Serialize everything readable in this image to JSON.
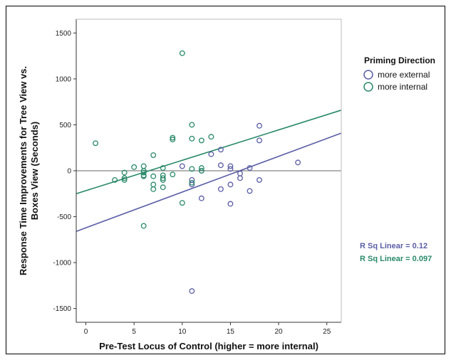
{
  "chart_data": {
    "type": "scatter",
    "xlabel": "Pre-Test Locus of Control (higher = more internal)",
    "ylabel_lines": [
      "Response Time Improvements for Tree View vs.",
      "Boxes View (Seconds)"
    ],
    "xlim": [
      -1,
      26.5
    ],
    "ylim": [
      -1650,
      1650
    ],
    "x_ticks": [
      0,
      5,
      10,
      15,
      20,
      25
    ],
    "y_ticks": [
      -1500,
      -1000,
      -500,
      0,
      500,
      1000,
      1500
    ],
    "reference_line_y": 0,
    "legend": {
      "title": "Priming Direction",
      "placement": "right"
    },
    "series": [
      {
        "name": "more external",
        "color": "#5b5ea6",
        "points": [
          [
            10,
            50
          ],
          [
            11,
            -100
          ],
          [
            11,
            -150
          ],
          [
            11,
            -1310
          ],
          [
            12,
            0
          ],
          [
            12,
            -300
          ],
          [
            13,
            180
          ],
          [
            14,
            60
          ],
          [
            14,
            -200
          ],
          [
            14,
            230
          ],
          [
            15,
            50
          ],
          [
            15,
            20
          ],
          [
            15,
            -150
          ],
          [
            15,
            -360
          ],
          [
            16,
            -80
          ],
          [
            16,
            -30
          ],
          [
            17,
            30
          ],
          [
            17,
            -220
          ],
          [
            18,
            490
          ],
          [
            18,
            330
          ],
          [
            18,
            -100
          ],
          [
            22,
            90
          ]
        ],
        "fit": {
          "x": [
            -1,
            26.5
          ],
          "y": [
            -660,
            410
          ]
        },
        "r_sq_label": "R Sq Linear = 0.12"
      },
      {
        "name": "more internal",
        "color": "#2a8a6a",
        "points": [
          [
            1,
            300
          ],
          [
            3,
            -100
          ],
          [
            4,
            -80
          ],
          [
            4,
            -100
          ],
          [
            4,
            -20
          ],
          [
            5,
            40
          ],
          [
            6,
            50
          ],
          [
            6,
            0
          ],
          [
            6,
            -20
          ],
          [
            6,
            -50
          ],
          [
            6,
            -60
          ],
          [
            6,
            -600
          ],
          [
            7,
            170
          ],
          [
            7,
            -60
          ],
          [
            7,
            -150
          ],
          [
            7,
            -200
          ],
          [
            8,
            30
          ],
          [
            8,
            -50
          ],
          [
            8,
            -80
          ],
          [
            8,
            -100
          ],
          [
            8,
            -180
          ],
          [
            9,
            360
          ],
          [
            9,
            340
          ],
          [
            9,
            -40
          ],
          [
            10,
            1280
          ],
          [
            10,
            -350
          ],
          [
            11,
            500
          ],
          [
            11,
            350
          ],
          [
            11,
            20
          ],
          [
            11,
            -130
          ],
          [
            12,
            330
          ],
          [
            12,
            30
          ],
          [
            12,
            0
          ],
          [
            13,
            370
          ]
        ],
        "fit": {
          "x": [
            -1,
            26.5
          ],
          "y": [
            -250,
            660
          ]
        },
        "r_sq_label": "R Sq Linear = 0.097"
      }
    ]
  }
}
